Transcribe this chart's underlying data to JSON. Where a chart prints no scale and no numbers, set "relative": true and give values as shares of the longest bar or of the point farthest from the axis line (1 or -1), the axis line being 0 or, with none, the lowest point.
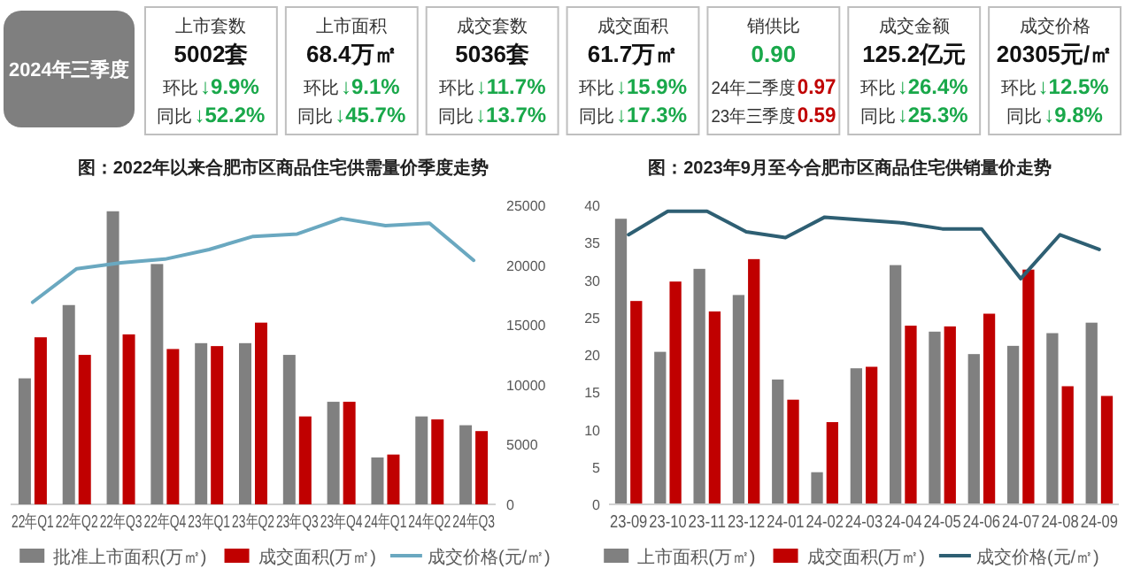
{
  "chart_data": [
    {
      "type": "other",
      "annotations": [
        "2024年三季度",
        "上市套数",
        "5002套",
        "环比",
        "↓9.9%",
        "同比",
        "↓52.2%",
        "上市面积",
        "68.4万㎡",
        "环比",
        "↓9.1%",
        "同比",
        "↓45.7%",
        "成交套数",
        "5036套",
        "环比",
        "↓11.7%",
        "同比",
        "↓13.7%",
        "成交面积",
        "61.7万㎡",
        "环比",
        "↓15.9%",
        "同比",
        "↓17.3%",
        "销供比",
        "0.90",
        "24年二季度",
        "0.97",
        "23年三季度",
        "0.59",
        "成交金额",
        "125.2亿元",
        "环比",
        "↓26.4%",
        "同比",
        "↓25.3%",
        "成交价格",
        "20305元/㎡",
        "环比",
        "↓12.5%",
        "同比",
        "↓9.8%"
      ]
    },
    {
      "type": "bar",
      "title": "图：2022年以来合肥市区商品住宅供需量价季度走势",
      "relative": true,
      "categories": [
        "22年Q1",
        "22年Q2",
        "22年Q3",
        "22年Q4",
        "23年Q1",
        "23年Q2",
        "23年Q3",
        "23年Q4",
        "24年Q1",
        "24年Q2",
        "24年Q3"
      ],
      "series": [
        {
          "name": "批准上市面积(万㎡)",
          "color": "#808080",
          "values": [
            0.43,
            0.68,
            1,
            0.82,
            0.55,
            0.55,
            0.51,
            0.35,
            0.16,
            0.3,
            0.27
          ]
        },
        {
          "name": "成交面积(万㎡)",
          "color": "#c00000",
          "values": [
            0.57,
            0.51,
            0.58,
            0.53,
            0.54,
            0.62,
            0.3,
            0.35,
            0.17,
            0.29,
            0.25
          ]
        }
      ],
      "legend": "bottom"
    },
    {
      "type": "line",
      "categories": [
        null,
        null,
        null,
        null,
        null,
        null,
        null,
        null,
        null,
        null,
        null
      ],
      "series": [
        {
          "name": "成交价格(元/㎡)",
          "color": "#6aa8c0",
          "values": [
            16900,
            19700,
            20200,
            20500,
            21300,
            22400,
            22600,
            23900,
            23300,
            23500,
            20400
          ]
        }
      ],
      "ylim": [
        0,
        25000
      ],
      "yticks": [
        0,
        5000,
        10000,
        15000,
        20000,
        25000
      ],
      "tick_labels": "y",
      "legend": "bottom",
      "marker": "none",
      "line_style": "solid"
    },
    {
      "type": "bar",
      "title": "图：2023年9月至今合肥市区商品住宅供销量价走势",
      "categories": [
        "23-09",
        "23-10",
        "23-11",
        "23-12",
        "24-01",
        "24-02",
        "24-03",
        "24-04",
        "24-05",
        "24-06",
        "24-07",
        "24-08",
        "24-09"
      ],
      "series": [
        {
          "name": "上市面积(万㎡)",
          "color": "#808080",
          "values": [
            38.2,
            20.4,
            31.5,
            28.0,
            16.7,
            4.3,
            18.2,
            32.0,
            23.1,
            20.1,
            21.2,
            22.9,
            24.3
          ]
        },
        {
          "name": "成交面积(万㎡)",
          "color": "#c00000",
          "values": [
            27.2,
            29.8,
            25.8,
            32.8,
            14.0,
            11.0,
            18.4,
            23.9,
            23.8,
            25.5,
            31.4,
            15.8,
            14.5
          ]
        }
      ],
      "ylim": [
        0,
        40
      ],
      "yticks": [
        0,
        5,
        10,
        15,
        20,
        25,
        30,
        35,
        40
      ],
      "legend": "bottom"
    },
    {
      "type": "line",
      "relative": true,
      "categories": [
        null,
        null,
        null,
        null,
        null,
        null,
        null,
        null,
        null,
        null,
        null,
        null,
        null
      ],
      "series": [
        {
          "name": "成交价格(元/㎡)",
          "color": "#2e5f73",
          "values": [
            0.92,
            1,
            1,
            0.93,
            0.91,
            0.98,
            0.97,
            0.96,
            0.94,
            0.94,
            0.77,
            0.92,
            0.87
          ]
        }
      ],
      "tick_labels": false,
      "legend": "bottom",
      "marker": "none",
      "line_style": "solid"
    }
  ]
}
